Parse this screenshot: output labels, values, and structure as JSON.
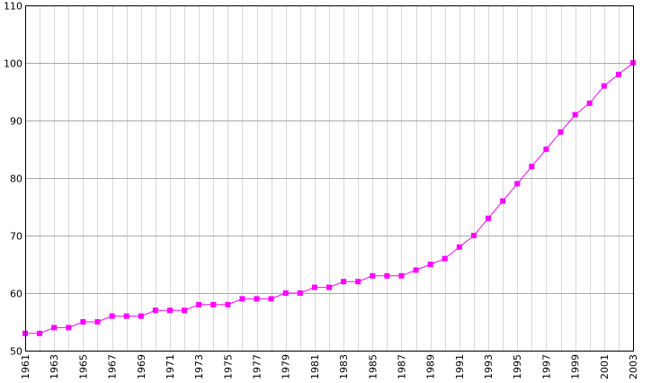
{
  "chart_data": {
    "type": "line",
    "title": "",
    "xlabel": "",
    "ylabel": "",
    "x": [
      1961,
      1962,
      1963,
      1964,
      1965,
      1966,
      1967,
      1968,
      1969,
      1970,
      1971,
      1972,
      1973,
      1974,
      1975,
      1976,
      1977,
      1978,
      1979,
      1980,
      1981,
      1982,
      1983,
      1984,
      1985,
      1986,
      1987,
      1988,
      1989,
      1990,
      1991,
      1992,
      1993,
      1994,
      1995,
      1996,
      1997,
      1998,
      1999,
      2000,
      2001,
      2002,
      2003
    ],
    "series": [
      {
        "values": [
          53,
          53,
          54,
          54,
          55,
          55,
          56,
          56,
          56,
          57,
          57,
          57,
          58,
          58,
          58,
          59,
          59,
          59,
          60,
          60,
          61,
          61,
          62,
          62,
          63,
          63,
          63,
          64,
          65,
          66,
          68,
          70,
          73,
          76,
          79,
          82,
          85,
          88,
          91,
          93,
          96,
          98,
          100
        ]
      }
    ],
    "xlim": [
      1961,
      2003
    ],
    "ylim": [
      50,
      110
    ],
    "y_ticks": [
      50,
      60,
      70,
      80,
      90,
      100,
      110
    ],
    "x_tick_labels": [
      1961,
      1963,
      1965,
      1967,
      1969,
      1971,
      1973,
      1975,
      1977,
      1979,
      1981,
      1983,
      1985,
      1987,
      1989,
      1991,
      1993,
      1995,
      1997,
      1999,
      2001,
      2003
    ],
    "grid": true,
    "legend": "none",
    "colors": {
      "series": "#ff00ff",
      "line": "#cc33cc",
      "grid_major": "#a8a8a8",
      "grid_minor": "#d8d8d8",
      "axis": "#000000"
    }
  }
}
